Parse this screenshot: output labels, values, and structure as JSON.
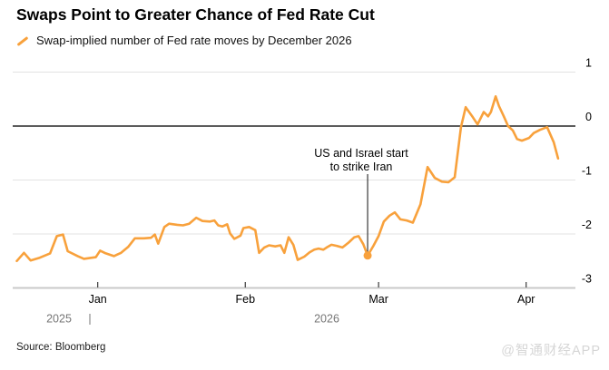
{
  "header": {
    "title": "Swaps Point to Greater Chance of Fed Rate Cut",
    "legend_label": "Swap-implied number of Fed rate moves by December 2026"
  },
  "footer": {
    "source": "Source: Bloomberg",
    "watermark": "@智通财经APP"
  },
  "colors": {
    "line": "#F8A13C",
    "gridline": "#e3e3e3",
    "zero_line": "#262626",
    "axis_line": "#c9c9c9",
    "tick": "#3a3a3a",
    "month_label": "#000000",
    "year_label": "#767676",
    "ytick_label": "#000000",
    "annotation": "#000000"
  },
  "chart_data": {
    "type": "line",
    "title": "Swaps Point to Greater Chance of Fed Rate Cut",
    "series": [
      {
        "name": "Swap-implied number of Fed rate moves by December 2026",
        "color": "#F8A13C",
        "points": [
          [
            0.0,
            -2.5
          ],
          [
            1.5,
            -2.35
          ],
          [
            2.9,
            -2.49
          ],
          [
            4.8,
            -2.44
          ],
          [
            7.0,
            -2.36
          ],
          [
            8.4,
            -2.04
          ],
          [
            9.7,
            -2.01
          ],
          [
            10.7,
            -2.32
          ],
          [
            12.8,
            -2.41
          ],
          [
            14.1,
            -2.46
          ],
          [
            16.6,
            -2.43
          ],
          [
            17.5,
            -2.31
          ],
          [
            18.7,
            -2.36
          ],
          [
            20.4,
            -2.41
          ],
          [
            21.9,
            -2.35
          ],
          [
            23.4,
            -2.24
          ],
          [
            24.8,
            -2.08
          ],
          [
            26.7,
            -2.08
          ],
          [
            28.2,
            -2.07
          ],
          [
            29.0,
            -2.01
          ],
          [
            29.7,
            -2.18
          ],
          [
            31.0,
            -1.87
          ],
          [
            32.0,
            -1.81
          ],
          [
            33.7,
            -1.83
          ],
          [
            34.9,
            -1.84
          ],
          [
            36.2,
            -1.81
          ],
          [
            37.7,
            -1.7
          ],
          [
            39.0,
            -1.76
          ],
          [
            40.6,
            -1.77
          ],
          [
            41.5,
            -1.75
          ],
          [
            42.3,
            -1.84
          ],
          [
            43.2,
            -1.86
          ],
          [
            44.2,
            -1.82
          ],
          [
            44.8,
            -1.99
          ],
          [
            45.7,
            -2.09
          ],
          [
            47.0,
            -2.03
          ],
          [
            47.6,
            -1.89
          ],
          [
            48.8,
            -1.87
          ],
          [
            50.1,
            -1.93
          ],
          [
            50.9,
            -2.35
          ],
          [
            52.0,
            -2.25
          ],
          [
            53.0,
            -2.21
          ],
          [
            54.3,
            -2.23
          ],
          [
            55.4,
            -2.21
          ],
          [
            56.2,
            -2.35
          ],
          [
            57.1,
            -2.06
          ],
          [
            58.1,
            -2.2
          ],
          [
            59.0,
            -2.48
          ],
          [
            60.4,
            -2.42
          ],
          [
            61.5,
            -2.34
          ],
          [
            62.5,
            -2.29
          ],
          [
            63.4,
            -2.27
          ],
          [
            64.4,
            -2.29
          ],
          [
            65.1,
            -2.25
          ],
          [
            66.1,
            -2.2
          ],
          [
            67.2,
            -2.22
          ],
          [
            68.4,
            -2.25
          ],
          [
            69.7,
            -2.16
          ],
          [
            70.9,
            -2.06
          ],
          [
            71.8,
            -2.04
          ],
          [
            72.8,
            -2.19
          ],
          [
            73.7,
            -2.4
          ],
          [
            74.9,
            -2.22
          ],
          [
            76.0,
            -2.04
          ],
          [
            77.1,
            -1.77
          ],
          [
            78.3,
            -1.66
          ],
          [
            79.4,
            -1.6
          ],
          [
            80.6,
            -1.73
          ],
          [
            81.9,
            -1.75
          ],
          [
            83.2,
            -1.79
          ],
          [
            84.8,
            -1.45
          ],
          [
            86.3,
            -0.76
          ],
          [
            87.8,
            -0.96
          ],
          [
            89.3,
            -1.03
          ],
          [
            90.7,
            -1.04
          ],
          [
            92.0,
            -0.95
          ],
          [
            93.3,
            -0.02
          ],
          [
            94.3,
            0.35
          ],
          [
            95.6,
            0.19
          ],
          [
            96.8,
            0.03
          ],
          [
            98.1,
            0.26
          ],
          [
            99.0,
            0.18
          ],
          [
            99.6,
            0.26
          ],
          [
            100.6,
            0.55
          ],
          [
            101.3,
            0.37
          ],
          [
            102.3,
            0.18
          ],
          [
            103.2,
            0.0
          ],
          [
            104.2,
            -0.08
          ],
          [
            105.1,
            -0.24
          ],
          [
            106.1,
            -0.27
          ],
          [
            107.6,
            -0.22
          ],
          [
            108.6,
            -0.13
          ],
          [
            109.9,
            -0.07
          ],
          [
            111.4,
            -0.02
          ],
          [
            112.8,
            -0.3
          ],
          [
            113.7,
            -0.6
          ]
        ]
      }
    ],
    "x_domain_days": [
      0,
      114
    ],
    "x_months": [
      {
        "label": "Jan",
        "day": 17
      },
      {
        "label": "Feb",
        "day": 48
      },
      {
        "label": "Mar",
        "day": 76
      },
      {
        "label": "Apr",
        "day": 107
      }
    ],
    "year_labels": [
      {
        "label": "2025",
        "x": 65
      },
      {
        "label": "|",
        "x": 99
      },
      {
        "label": "2026",
        "x": 360
      }
    ],
    "ylim": [
      -3,
      1
    ],
    "yticks": [
      "1",
      "0",
      "-1",
      "-2",
      "-3"
    ],
    "ytick_values": [
      1,
      0,
      -1,
      -2,
      -3
    ],
    "grid": true,
    "legend_position": "top-left",
    "annotation": {
      "text_line1": "US and Israel start",
      "text_line2": "to strike Iran",
      "day": 73.7,
      "value": -2.4,
      "marker": "dot"
    }
  }
}
